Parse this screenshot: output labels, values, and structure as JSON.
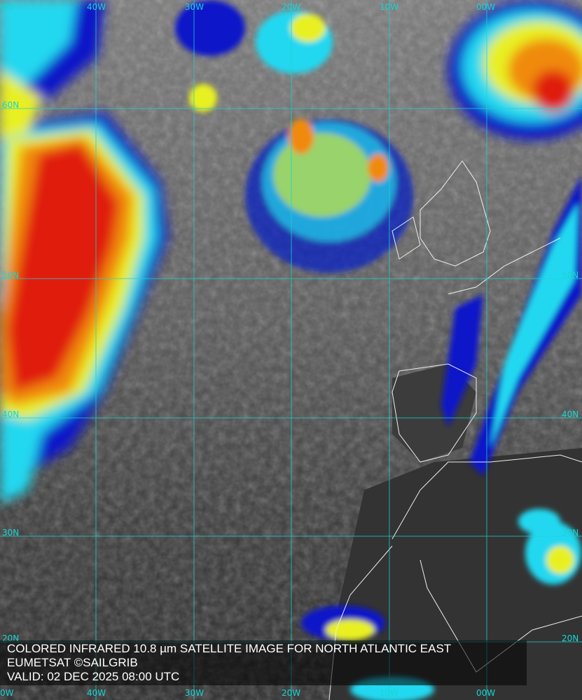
{
  "caption": {
    "title": "COLORED INFRARED 10.8 µm SATELLITE IMAGE FOR NORTH ATLANTIC EAST",
    "credit": "EUMETSAT ©SAILGRIB",
    "valid": "VALID:  02 DEC 2025 08:00 UTC"
  },
  "grid": {
    "longitude_top": [
      "0W",
      "40W",
      "30W",
      "20W",
      "10W",
      "00W"
    ],
    "longitude_bottom": [
      "0W",
      "40W",
      "30W",
      "20W",
      "10W",
      "00W"
    ],
    "latitude_left": [
      "60N",
      "50N",
      "40N",
      "30N",
      "20N"
    ],
    "latitude_right": [
      "50N",
      "40N",
      "30N",
      "20N"
    ],
    "grid_color": "#19d4d4"
  },
  "palette": {
    "cold_top": "#e01a0a",
    "orange": "#f08a10",
    "yellow": "#e8f020",
    "cyan": "#20d8f0",
    "blue": "#0818c8",
    "clear_sky": "#4a4a4a"
  }
}
